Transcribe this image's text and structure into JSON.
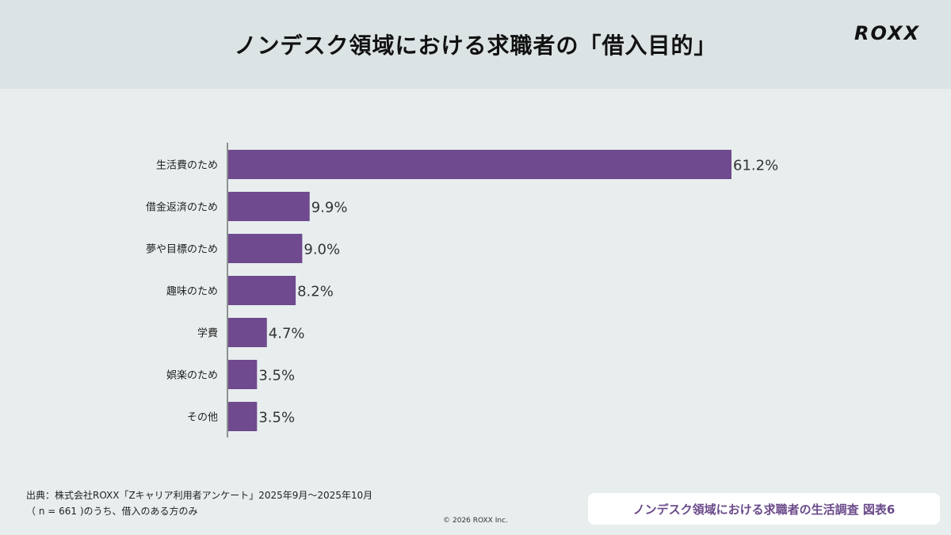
{
  "header": {
    "title": "ノンデスク領域における求職者の「借入目的」",
    "logo": "ROXX"
  },
  "chart_data": {
    "type": "bar",
    "orientation": "horizontal",
    "categories": [
      "生活費のため",
      "借金返済のため",
      "夢や目標のため",
      "趣味のため",
      "学費",
      "娯楽のため",
      "その他"
    ],
    "values": [
      61.2,
      9.9,
      9.0,
      8.2,
      4.7,
      3.5,
      3.5
    ],
    "labels": [
      "61.2%",
      "9.9%",
      "9.0%",
      "8.2%",
      "4.7%",
      "3.5%",
      "3.5%"
    ],
    "unit": "%",
    "bar_color": "#6f4a8e",
    "grid": false
  },
  "footer": {
    "source": "出典：株式会社ROXX「Zキャリア利用者アンケート」2025年9月〜2025年10月",
    "note": "（ n = 661 )のうち、借入のある方のみ",
    "copyright": "© 2026 ROXX Inc.",
    "badge": "ノンデスク領域における求職者の生活調査 図表6"
  }
}
